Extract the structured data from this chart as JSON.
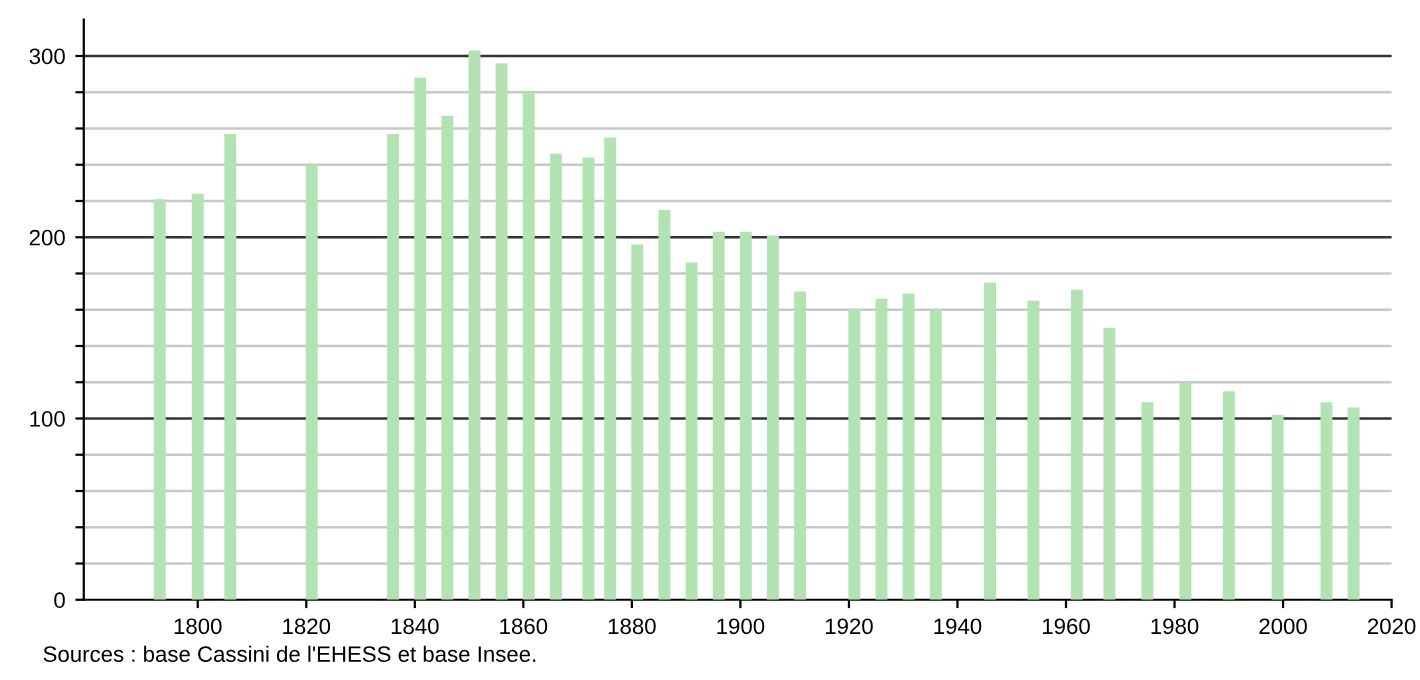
{
  "chart_data": {
    "type": "bar",
    "x": [
      1793,
      1800,
      1806,
      1821,
      1836,
      1841,
      1846,
      1851,
      1856,
      1861,
      1866,
      1872,
      1876,
      1881,
      1886,
      1891,
      1896,
      1901,
      1906,
      1911,
      1921,
      1926,
      1931,
      1936,
      1946,
      1954,
      1962,
      1968,
      1975,
      1982,
      1990,
      1999,
      2008,
      2013
    ],
    "values": [
      221,
      224,
      257,
      240,
      257,
      288,
      267,
      303,
      296,
      280,
      246,
      244,
      255,
      196,
      215,
      186,
      203,
      203,
      201,
      170,
      160,
      166,
      169,
      160,
      175,
      165,
      171,
      150,
      109,
      120,
      115,
      102,
      109,
      106
    ],
    "color": "#b3e3b3",
    "xlim": [
      1779,
      2020
    ],
    "xticks": [
      1800,
      1820,
      1840,
      1860,
      1880,
      1900,
      1920,
      1940,
      1960,
      1980,
      2000,
      2020
    ],
    "ylim": [
      0,
      320
    ],
    "yticks": [
      0,
      {
        "value": 20,
        "label": null
      },
      {
        "value": 40,
        "label": null
      },
      {
        "value": 60,
        "label": null
      },
      {
        "value": 80,
        "label": null
      },
      100,
      {
        "value": 120,
        "label": null
      },
      {
        "value": 140,
        "label": null
      },
      {
        "value": 160,
        "label": null
      },
      {
        "value": 180,
        "label": null
      },
      200,
      {
        "value": 220,
        "label": null
      },
      {
        "value": 240,
        "label": null
      },
      {
        "value": 260,
        "label": null
      },
      {
        "value": 280,
        "label": null
      },
      300
    ],
    "grid": "y",
    "annotations": [
      "Sources : base Cassini de l'EHESS et base Insee."
    ]
  }
}
